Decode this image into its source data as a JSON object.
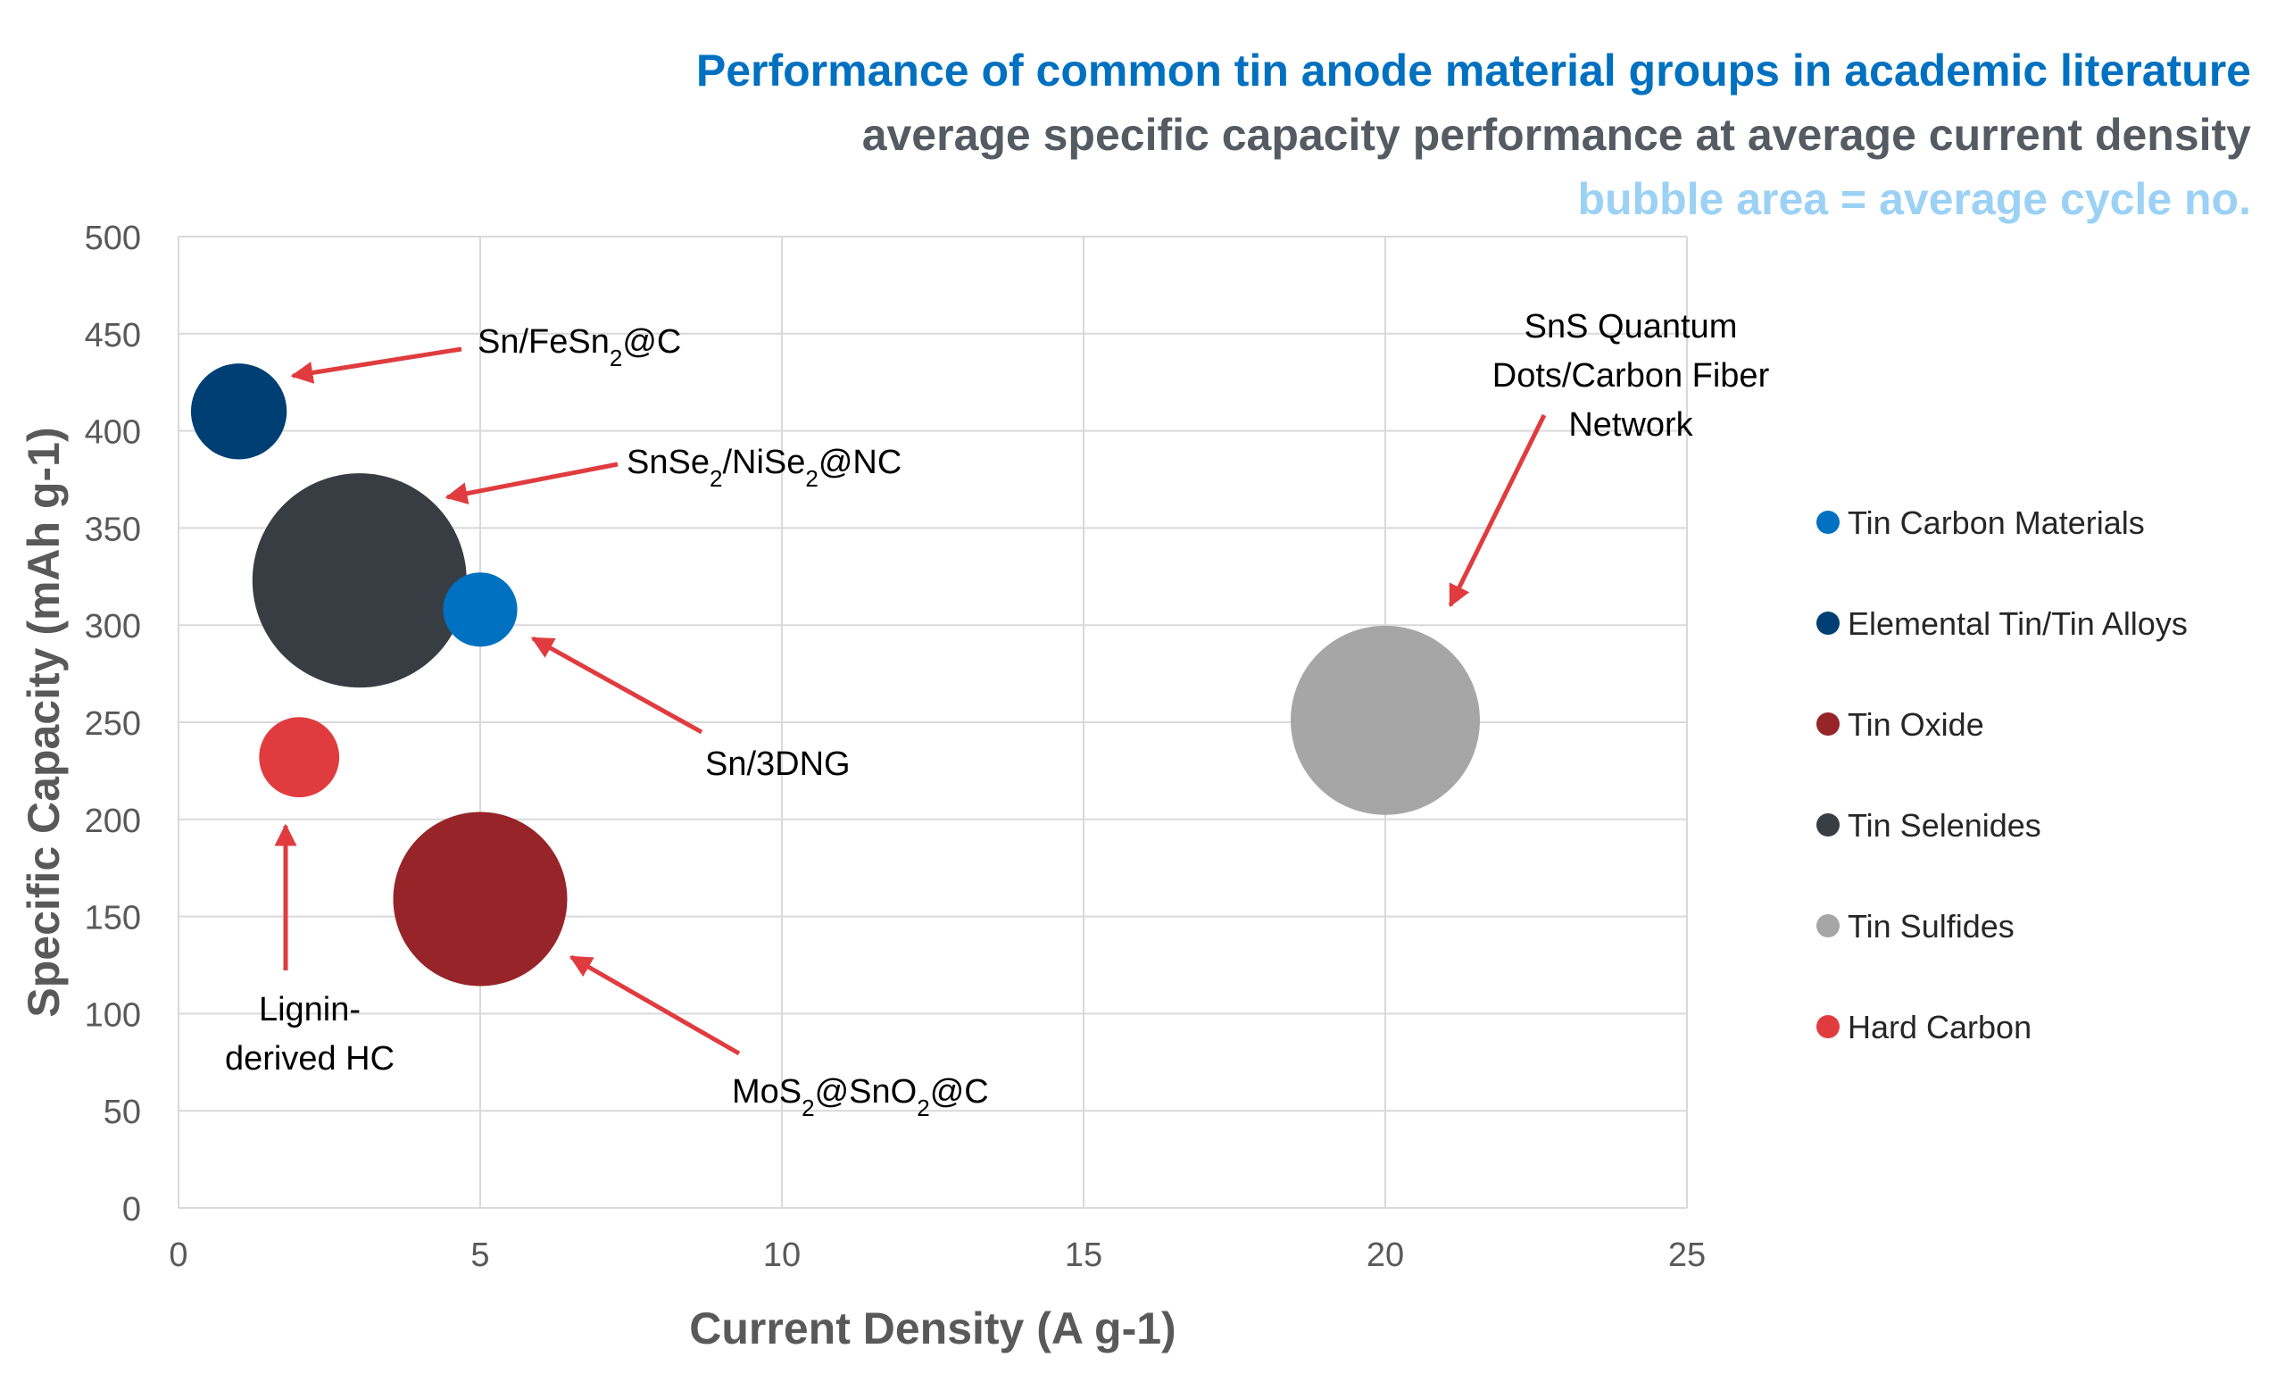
{
  "titles": {
    "main": "Performance of common tin anode material groups in academic literature",
    "sub": "average specific capacity performance at average current density",
    "note": "bubble area = average cycle no.",
    "main_color": "#0070C0",
    "sub_color": "#545B62",
    "note_color": "#9BD1F4"
  },
  "chart_data": {
    "type": "scatter",
    "subtype": "bubble",
    "xlabel": "Current Density (A g-1)",
    "ylabel": "Specific Capacity (mAh g-1)",
    "xlim": [
      0,
      25
    ],
    "ylim": [
      0,
      500
    ],
    "xticks": [
      0,
      5,
      10,
      15,
      20,
      25
    ],
    "yticks": [
      0,
      50,
      100,
      150,
      200,
      250,
      300,
      350,
      400,
      450,
      500
    ],
    "grid": true,
    "legend_position": "right",
    "series": [
      {
        "name": "Tin Carbon Materials",
        "color": "#0070C0",
        "points": [
          {
            "x": 5,
            "y": 308,
            "label": "Sn/3DNG",
            "size_rel": 0.12
          }
        ]
      },
      {
        "name": "Elemental Tin/Tin Alloys",
        "color": "#003F74",
        "points": [
          {
            "x": 1,
            "y": 410,
            "label": "Sn/FeSn2@C",
            "size_rel": 0.2
          }
        ]
      },
      {
        "name": "Tin Oxide",
        "color": "#962428",
        "points": [
          {
            "x": 5,
            "y": 159,
            "label": "MoS2@SnO2@C",
            "size_rel": 0.66
          }
        ]
      },
      {
        "name": "Tin Selenides",
        "color": "#373D42",
        "points": [
          {
            "x": 3,
            "y": 323,
            "label": "SnSe2/NiSe2@NC",
            "size_rel": 1.0
          }
        ]
      },
      {
        "name": "Tin Sulfides",
        "color": "#A6A6A6",
        "points": [
          {
            "x": 20,
            "y": 251,
            "label": "SnS Quantum Dots/Carbon Fiber Network",
            "size_rel": 0.78
          }
        ]
      },
      {
        "name": "Hard Carbon",
        "color": "#E03C3F",
        "points": [
          {
            "x": 2,
            "y": 232,
            "label": "Lignin-derived HC",
            "size_rel": 0.14
          }
        ]
      }
    ],
    "annotations": [
      {
        "id": "fesn",
        "parts": [
          [
            "Sn/FeSn",
            ""
          ],
          [
            "2",
            "sub"
          ],
          [
            "@C",
            ""
          ]
        ]
      },
      {
        "id": "snse",
        "parts": [
          [
            "SnSe",
            ""
          ],
          [
            "2",
            "sub"
          ],
          [
            "/NiSe",
            ""
          ],
          [
            "2",
            "sub"
          ],
          [
            "@NC",
            ""
          ]
        ]
      },
      {
        "id": "sn3dng",
        "parts": [
          [
            "Sn/3DNG",
            ""
          ]
        ]
      },
      {
        "id": "mos",
        "parts": [
          [
            "MoS",
            ""
          ],
          [
            "2",
            "sub"
          ],
          [
            "@SnO",
            ""
          ],
          [
            "2",
            "sub"
          ],
          [
            "@C",
            ""
          ]
        ]
      },
      {
        "id": "lignin1",
        "parts": [
          [
            "Lignin-",
            ""
          ]
        ]
      },
      {
        "id": "lignin2",
        "parts": [
          [
            "derived HC",
            ""
          ]
        ]
      },
      {
        "id": "sns1",
        "parts": [
          [
            "SnS Quantum",
            ""
          ]
        ]
      },
      {
        "id": "sns2",
        "parts": [
          [
            "Dots/Carbon Fiber",
            ""
          ]
        ]
      },
      {
        "id": "sns3",
        "parts": [
          [
            "Network",
            ""
          ]
        ]
      }
    ],
    "arrow_color": "#E03C3F"
  }
}
